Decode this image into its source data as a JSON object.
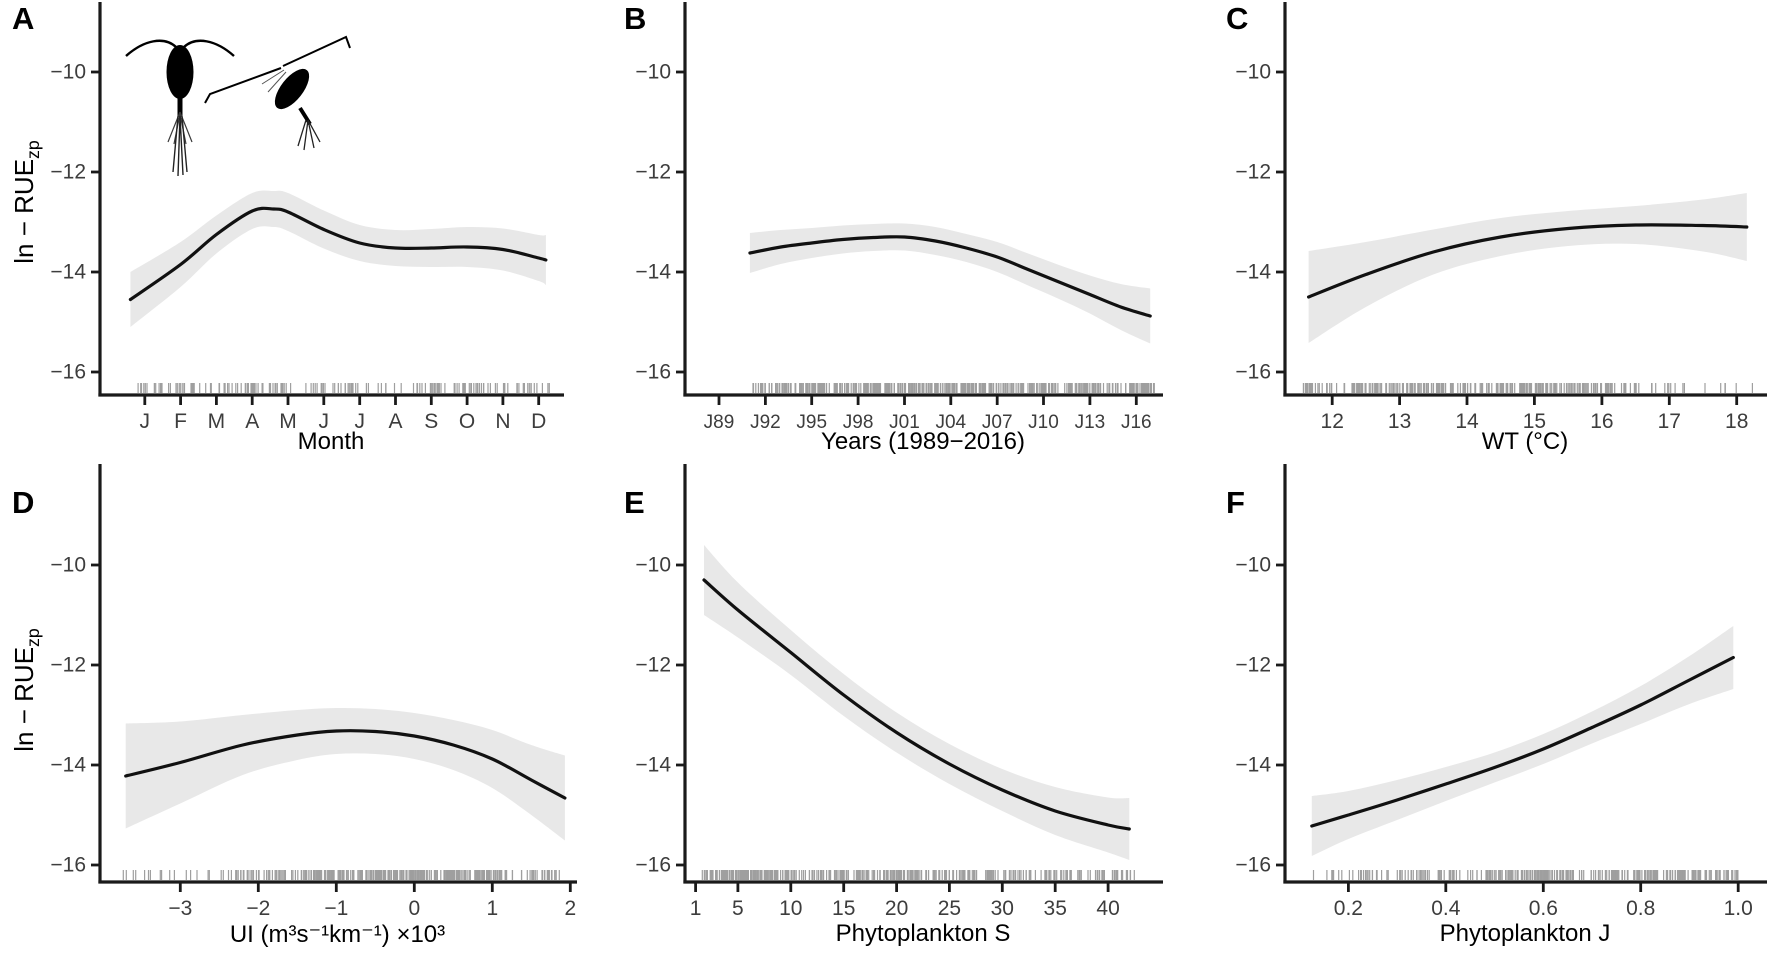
{
  "figure": {
    "y_axis_title": {
      "main": "ln − RUE",
      "sub": "zp"
    },
    "colors": {
      "curve": "#111111",
      "band": "#e8e8e8",
      "axis": "#1a1a1a",
      "tick_text": "#3d3d3d",
      "rug": "#8f8f8f"
    },
    "icons": [
      "copepod-upright-icon",
      "copepod-tilted-icon"
    ]
  },
  "chart_data": [
    {
      "panel": "A",
      "type": "line",
      "xlabel": "Month",
      "x_ticks": [
        1,
        2,
        3,
        4,
        5,
        6,
        7,
        8,
        9,
        10,
        11,
        12
      ],
      "x_tick_labels": [
        "J",
        "F",
        "M",
        "A",
        "M",
        "J",
        "J",
        "A",
        "S",
        "O",
        "N",
        "D"
      ],
      "xlim": [
        -0.25,
        12.65
      ],
      "y_ticks": [
        -10,
        -12,
        -14,
        -16
      ],
      "y_tick_labels": [
        "−10",
        "−12",
        "−14",
        "−16"
      ],
      "ylim": [
        -16.46,
        -8.72
      ],
      "smooth_x": [
        0.6,
        2,
        3,
        4,
        4.6,
        5,
        6,
        7,
        8,
        9,
        10,
        11,
        12,
        12.2
      ],
      "smooth_y": [
        -14.55,
        -13.85,
        -13.25,
        -12.78,
        -12.74,
        -12.8,
        -13.15,
        -13.42,
        -13.52,
        -13.52,
        -13.5,
        -13.55,
        -13.72,
        -13.76
      ],
      "ci_half": [
        0.55,
        0.45,
        0.38,
        0.36,
        0.36,
        0.38,
        0.38,
        0.36,
        0.36,
        0.38,
        0.4,
        0.42,
        0.46,
        0.5
      ],
      "rug_clusters": [
        {
          "min": 0.7,
          "max": 12.3,
          "n": 170
        }
      ],
      "icons": [
        "copepod-upright-icon",
        "copepod-tilted-icon"
      ],
      "legend": false,
      "grid": false
    },
    {
      "panel": "B",
      "type": "line",
      "xlabel": "Years (1989−2016)",
      "x_ticks": [
        1989,
        1992,
        1995,
        1998,
        2001,
        2004,
        2007,
        2010,
        2013,
        2016
      ],
      "x_tick_labels": [
        "J89",
        "J92",
        "J95",
        "J98",
        "J01",
        "J04",
        "J07",
        "J10",
        "J13",
        "J16"
      ],
      "xlim": [
        1986.8,
        2017.6
      ],
      "y_ticks": [
        -10,
        -12,
        -14,
        -16
      ],
      "y_tick_labels": [
        "−10",
        "−12",
        "−14",
        "−16"
      ],
      "ylim": [
        -16.46,
        -8.72
      ],
      "smooth_x": [
        1991,
        1993,
        1995,
        1997,
        1999,
        2001,
        2003,
        2005,
        2007,
        2009,
        2011,
        2013,
        2015,
        2016.9
      ],
      "smooth_y": [
        -13.62,
        -13.5,
        -13.42,
        -13.35,
        -13.31,
        -13.3,
        -13.38,
        -13.52,
        -13.7,
        -13.95,
        -14.2,
        -14.45,
        -14.7,
        -14.88
      ],
      "ci_half": [
        0.4,
        0.34,
        0.3,
        0.28,
        0.27,
        0.27,
        0.28,
        0.28,
        0.3,
        0.32,
        0.34,
        0.38,
        0.46,
        0.55
      ],
      "rug_clusters": [
        {
          "min": 1991.2,
          "max": 2017.2,
          "n": 420
        }
      ],
      "legend": false,
      "grid": false
    },
    {
      "panel": "C",
      "type": "line",
      "xlabel": "WT (°C)",
      "x_ticks": [
        12,
        13,
        14,
        15,
        16,
        17,
        18
      ],
      "x_tick_labels": [
        "12",
        "13",
        "14",
        "15",
        "16",
        "17",
        "18"
      ],
      "xlim": [
        11.3,
        18.42
      ],
      "y_ticks": [
        -10,
        -12,
        -14,
        -16
      ],
      "y_tick_labels": [
        "−10",
        "−12",
        "−14",
        "−16"
      ],
      "ylim": [
        -16.46,
        -8.72
      ],
      "smooth_x": [
        11.65,
        12.5,
        13.5,
        14.5,
        15.5,
        16.5,
        17.5,
        18.15
      ],
      "smooth_y": [
        -14.5,
        -14.05,
        -13.6,
        -13.3,
        -13.13,
        -13.06,
        -13.07,
        -13.1
      ],
      "ci_half": [
        0.92,
        0.65,
        0.45,
        0.38,
        0.35,
        0.38,
        0.52,
        0.68
      ],
      "rug_clusters": [
        {
          "min": 11.55,
          "max": 12.3,
          "n": 25
        },
        {
          "min": 12.3,
          "max": 16.2,
          "n": 230
        },
        {
          "min": 16.2,
          "max": 17.2,
          "n": 18
        },
        {
          "min": 17.2,
          "max": 18.3,
          "n": 8
        }
      ],
      "legend": false,
      "grid": false
    },
    {
      "panel": "D",
      "type": "line",
      "xlabel": "UI (m³s⁻¹km⁻¹) ×10³",
      "x_ticks": [
        -3,
        -2,
        -1,
        0,
        1,
        2
      ],
      "x_tick_labels": [
        "−3",
        "−2",
        "−1",
        "0",
        "1",
        "2"
      ],
      "xlim": [
        -4.03,
        2.06
      ],
      "y_ticks": [
        -10,
        -12,
        -14,
        -16
      ],
      "y_tick_labels": [
        "−10",
        "−12",
        "−14",
        "−16"
      ],
      "ylim": [
        -16.34,
        -8.68
      ],
      "smooth_x": [
        -3.7,
        -3,
        -2.2,
        -1.5,
        -1,
        -0.5,
        0,
        0.5,
        1,
        1.5,
        1.93
      ],
      "smooth_y": [
        -14.22,
        -13.95,
        -13.6,
        -13.4,
        -13.32,
        -13.33,
        -13.42,
        -13.6,
        -13.88,
        -14.3,
        -14.66
      ],
      "ci_half": [
        1.05,
        0.82,
        0.6,
        0.5,
        0.46,
        0.45,
        0.46,
        0.5,
        0.58,
        0.7,
        0.85
      ],
      "rug_clusters": [
        {
          "min": -3.8,
          "max": -2.4,
          "n": 18
        },
        {
          "min": -2.4,
          "max": -1.4,
          "n": 45
        },
        {
          "min": -1.4,
          "max": 1.2,
          "n": 260
        },
        {
          "min": 1.2,
          "max": 1.9,
          "n": 30
        }
      ],
      "legend": false,
      "grid": false
    },
    {
      "panel": "E",
      "type": "line",
      "xlabel": "Phytoplankton S",
      "x_ticks": [
        1,
        5,
        10,
        15,
        20,
        25,
        30,
        35,
        40
      ],
      "x_tick_labels": [
        "1",
        "5",
        "10",
        "15",
        "20",
        "25",
        "30",
        "35",
        "40"
      ],
      "xlim": [
        0,
        45
      ],
      "y_ticks": [
        -10,
        -12,
        -14,
        -16
      ],
      "y_tick_labels": [
        "−10",
        "−12",
        "−14",
        "−16"
      ],
      "ylim": [
        -16.34,
        -8.68
      ],
      "smooth_x": [
        1.8,
        5,
        10,
        15,
        20,
        25,
        30,
        35,
        40,
        42
      ],
      "smooth_y": [
        -10.3,
        -10.9,
        -11.75,
        -12.6,
        -13.35,
        -13.98,
        -14.5,
        -14.92,
        -15.2,
        -15.28
      ],
      "ci_half": [
        0.7,
        0.55,
        0.45,
        0.42,
        0.4,
        0.4,
        0.42,
        0.48,
        0.55,
        0.62
      ],
      "rug_clusters": [
        {
          "min": 1.5,
          "max": 10,
          "n": 150
        },
        {
          "min": 10,
          "max": 25,
          "n": 150
        },
        {
          "min": 25,
          "max": 35,
          "n": 70
        },
        {
          "min": 35,
          "max": 42.5,
          "n": 40
        }
      ],
      "legend": false,
      "grid": false
    },
    {
      "panel": "F",
      "type": "line",
      "xlabel": "Phytoplankton J",
      "x_ticks": [
        0.2,
        0.4,
        0.6,
        0.8,
        1.0
      ],
      "x_tick_labels": [
        "0.2",
        "0.4",
        "0.6",
        "0.8",
        "1.0"
      ],
      "xlim": [
        0.07,
        1.055
      ],
      "y_ticks": [
        -10,
        -12,
        -14,
        -16
      ],
      "y_tick_labels": [
        "−10",
        "−12",
        "−14",
        "−16"
      ],
      "ylim": [
        -16.34,
        -8.68
      ],
      "smooth_x": [
        0.125,
        0.2,
        0.3,
        0.4,
        0.5,
        0.6,
        0.7,
        0.8,
        0.9,
        0.99
      ],
      "smooth_y": [
        -15.22,
        -15.0,
        -14.7,
        -14.38,
        -14.05,
        -13.68,
        -13.25,
        -12.8,
        -12.3,
        -11.85
      ],
      "ci_half": [
        0.6,
        0.48,
        0.4,
        0.34,
        0.3,
        0.3,
        0.32,
        0.38,
        0.48,
        0.63
      ],
      "rug_clusters": [
        {
          "min": 0.12,
          "max": 0.3,
          "n": 25
        },
        {
          "min": 0.3,
          "max": 0.45,
          "n": 40
        },
        {
          "min": 0.45,
          "max": 0.98,
          "n": 230
        },
        {
          "min": 0.98,
          "max": 1.0,
          "n": 6
        }
      ],
      "legend": false,
      "grid": false
    }
  ]
}
